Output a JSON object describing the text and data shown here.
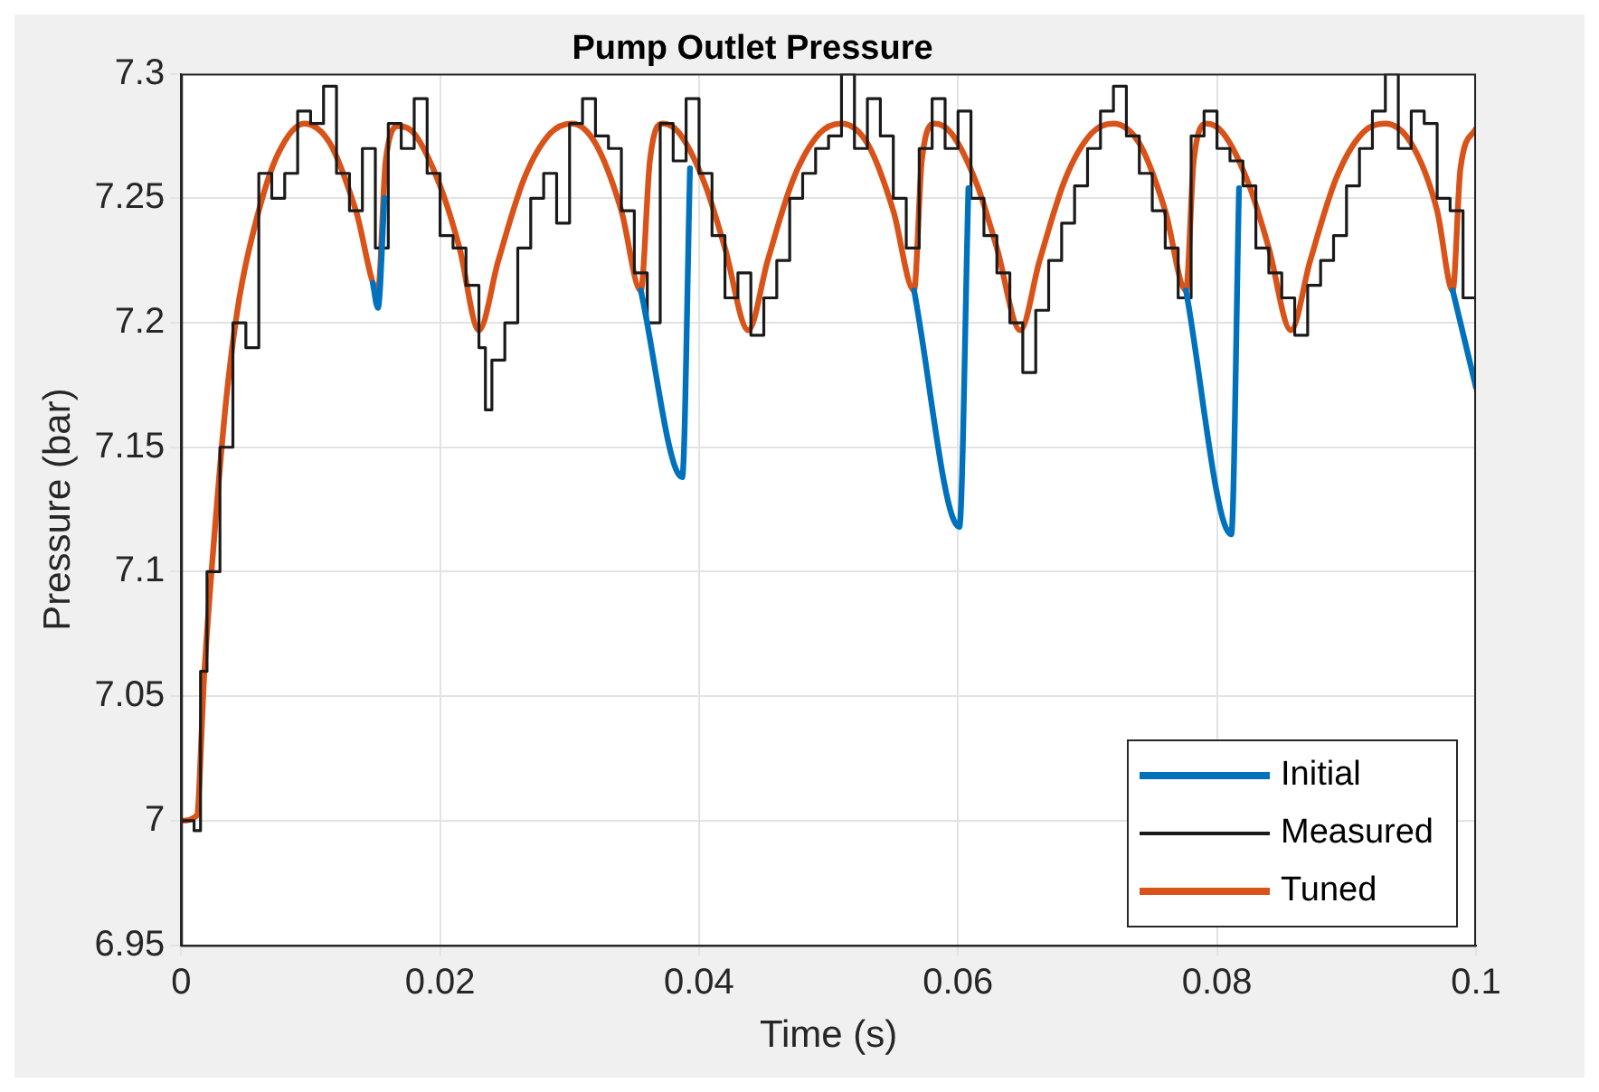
{
  "chart_data": {
    "type": "line",
    "title": "Pump Outlet Pressure",
    "xlabel": "Time (s)",
    "ylabel": "Pressure (bar)",
    "xlim": [
      0,
      0.1
    ],
    "xticks": [
      0,
      0.02,
      0.04,
      0.06,
      0.08,
      0.1
    ],
    "ylim": [
      6.95,
      7.3
    ],
    "yticks": [
      6.95,
      7,
      7.05,
      7.1,
      7.15,
      7.2,
      7.25,
      7.3
    ],
    "grid": true,
    "legend": "bottom right",
    "marker": "none",
    "line_style": "solid",
    "series": [
      {
        "name": "Initial",
        "type": "line",
        "color": "#0072bd",
        "x": [
          0.0148,
          0.0152,
          0.0157,
          0.0158,
          0.0355,
          0.0387,
          0.0393,
          0.0394,
          0.0566,
          0.0601,
          0.0608,
          0.0609,
          0.0776,
          0.0811,
          0.0817,
          0.0818,
          0.0982,
          0.1
        ],
        "values": [
          7.216,
          7.206,
          7.25,
          null,
          7.213,
          7.138,
          7.262,
          null,
          7.213,
          7.118,
          7.254,
          null,
          7.213,
          7.115,
          7.254,
          null,
          7.213,
          7.174
        ]
      },
      {
        "name": "Measured",
        "type": "step",
        "color": "#1a1a1a",
        "x": [
          0,
          0.001,
          0.0015,
          0.002,
          0.003,
          0.004,
          0.005,
          0.006,
          0.007,
          0.008,
          0.009,
          0.01,
          0.011,
          0.012,
          0.013,
          0.014,
          0.015,
          0.016,
          0.017,
          0.018,
          0.019,
          0.02,
          0.021,
          0.022,
          0.023,
          0.0235,
          0.024,
          0.025,
          0.026,
          0.027,
          0.028,
          0.029,
          0.03,
          0.031,
          0.032,
          0.033,
          0.034,
          0.035,
          0.036,
          0.037,
          0.038,
          0.039,
          0.04,
          0.041,
          0.042,
          0.043,
          0.044,
          0.045,
          0.046,
          0.047,
          0.048,
          0.049,
          0.05,
          0.051,
          0.052,
          0.053,
          0.054,
          0.055,
          0.056,
          0.057,
          0.058,
          0.059,
          0.06,
          0.061,
          0.062,
          0.063,
          0.064,
          0.065,
          0.066,
          0.067,
          0.068,
          0.069,
          0.07,
          0.071,
          0.072,
          0.073,
          0.074,
          0.075,
          0.076,
          0.077,
          0.078,
          0.079,
          0.08,
          0.081,
          0.082,
          0.083,
          0.084,
          0.085,
          0.086,
          0.087,
          0.088,
          0.089,
          0.09,
          0.091,
          0.092,
          0.093,
          0.094,
          0.095,
          0.096,
          0.097,
          0.098,
          0.099,
          0.1
        ],
        "values": [
          7.0,
          6.996,
          7.06,
          7.1,
          7.15,
          7.2,
          7.19,
          7.26,
          7.25,
          7.26,
          7.285,
          7.28,
          7.295,
          7.26,
          7.245,
          7.27,
          7.23,
          7.28,
          7.27,
          7.29,
          7.26,
          7.235,
          7.23,
          7.215,
          7.19,
          7.165,
          7.185,
          7.2,
          7.23,
          7.25,
          7.26,
          7.24,
          7.28,
          7.29,
          7.275,
          7.27,
          7.245,
          7.22,
          7.2,
          7.28,
          7.265,
          7.29,
          7.26,
          7.235,
          7.21,
          7.22,
          7.195,
          7.21,
          7.225,
          7.25,
          7.26,
          7.27,
          7.275,
          7.3,
          7.27,
          7.29,
          7.275,
          7.25,
          7.23,
          7.27,
          7.29,
          7.27,
          7.285,
          7.25,
          7.235,
          7.22,
          7.2,
          7.18,
          7.205,
          7.225,
          7.24,
          7.255,
          7.27,
          7.285,
          7.295,
          7.275,
          7.26,
          7.245,
          7.23,
          7.21,
          7.275,
          7.285,
          7.27,
          7.265,
          7.255,
          7.23,
          7.22,
          7.21,
          7.195,
          7.215,
          7.225,
          7.235,
          7.255,
          7.27,
          7.285,
          7.3,
          7.27,
          7.285,
          7.28,
          7.25,
          7.245,
          7.21,
          7.28
        ]
      },
      {
        "name": "Tuned",
        "type": "line",
        "color": "#d95319",
        "x": [
          0,
          0.0012,
          0.0018,
          0.0025,
          0.0035,
          0.0045,
          0.006,
          0.0075,
          0.0095,
          0.0115,
          0.0135,
          0.0152,
          0.0158,
          0.0168,
          0.018,
          0.02,
          0.0215,
          0.023,
          0.0245,
          0.0265,
          0.0285,
          0.0302,
          0.032,
          0.034,
          0.0355,
          0.0362,
          0.0372,
          0.0385,
          0.0405,
          0.042,
          0.0438,
          0.0453,
          0.0473,
          0.0493,
          0.051,
          0.053,
          0.055,
          0.0566,
          0.0572,
          0.0582,
          0.0595,
          0.0615,
          0.063,
          0.0648,
          0.0663,
          0.0683,
          0.0703,
          0.072,
          0.074,
          0.076,
          0.0776,
          0.0782,
          0.0792,
          0.0805,
          0.0825,
          0.084,
          0.0857,
          0.0872,
          0.0892,
          0.0912,
          0.093,
          0.095,
          0.097,
          0.0982,
          0.0988,
          0.1
        ],
        "values": [
          7.0,
          7.002,
          7.06,
          7.11,
          7.17,
          7.21,
          7.245,
          7.268,
          7.28,
          7.272,
          7.245,
          7.213,
          7.265,
          7.279,
          7.276,
          7.255,
          7.23,
          7.197,
          7.225,
          7.258,
          7.276,
          7.28,
          7.272,
          7.245,
          7.213,
          7.265,
          7.28,
          7.276,
          7.255,
          7.23,
          7.197,
          7.225,
          7.258,
          7.276,
          7.28,
          7.272,
          7.245,
          7.213,
          7.265,
          7.28,
          7.276,
          7.255,
          7.23,
          7.197,
          7.225,
          7.258,
          7.276,
          7.28,
          7.272,
          7.245,
          7.213,
          7.265,
          7.28,
          7.276,
          7.255,
          7.23,
          7.197,
          7.225,
          7.258,
          7.276,
          7.28,
          7.272,
          7.245,
          7.213,
          7.262,
          7.278
        ]
      }
    ]
  }
}
